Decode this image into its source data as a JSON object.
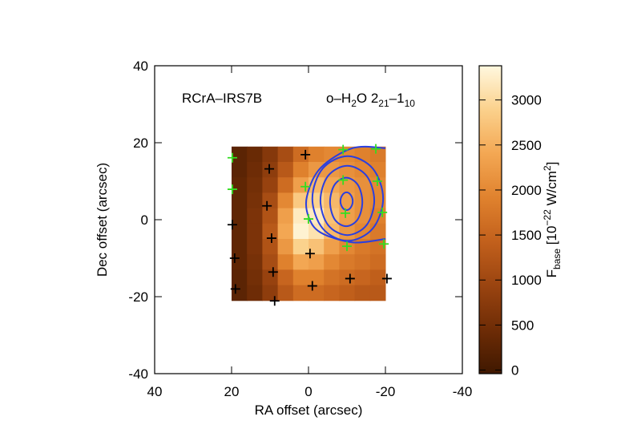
{
  "chart_data": {
    "type": "heatmap",
    "xlabel": "RA offset (arcsec)",
    "ylabel": "Dec offset (arcsec)",
    "xlim": [
      40,
      -40
    ],
    "xticks": [
      40,
      20,
      0,
      -20,
      -40
    ],
    "ylim": [
      -40,
      40
    ],
    "yticks": [
      -40,
      -20,
      0,
      20,
      40
    ],
    "annotations": [
      [
        {
          "text": "RCrA–IRS7B"
        }
      ],
      [
        {
          "text": "o–H"
        },
        {
          "text": "2",
          "shift": "sub"
        },
        {
          "text": "O 2"
        },
        {
          "text": "21",
          "shift": "sub"
        },
        {
          "text": "–1"
        },
        {
          "text": "10",
          "shift": "sub"
        }
      ]
    ],
    "heatmap": {
      "x": [
        18,
        14,
        10,
        6,
        2,
        -2,
        -6,
        -10,
        -14,
        -18
      ],
      "y": [
        17,
        13,
        9,
        5,
        1,
        -3,
        -7,
        -11,
        -15,
        -19
      ],
      "values": [
        [
          250,
          400,
          700,
          1100,
          1600,
          1900,
          2000,
          2000,
          1900,
          1800
        ],
        [
          250,
          450,
          800,
          1300,
          1900,
          2200,
          2200,
          2100,
          2000,
          1900
        ],
        [
          300,
          500,
          900,
          1600,
          2300,
          2600,
          2400,
          2200,
          2100,
          2000
        ],
        [
          300,
          550,
          1100,
          2000,
          2800,
          2900,
          2600,
          2300,
          2100,
          2000
        ],
        [
          300,
          600,
          1200,
          2300,
          3200,
          3200,
          2700,
          2300,
          2100,
          1900
        ],
        [
          300,
          600,
          1300,
          2400,
          3300,
          3100,
          2600,
          2200,
          2000,
          1800
        ],
        [
          300,
          600,
          1200,
          2200,
          2900,
          2700,
          2300,
          2000,
          1800,
          1700
        ],
        [
          300,
          550,
          1100,
          1900,
          2400,
          2300,
          2000,
          1800,
          1700,
          1600
        ],
        [
          250,
          500,
          900,
          1500,
          1900,
          1900,
          1700,
          1600,
          1500,
          1400
        ],
        [
          250,
          450,
          800,
          1300,
          1600,
          1600,
          1500,
          1400,
          1300,
          1300
        ]
      ]
    },
    "colormap": [
      "#3f1800",
      "#6e2c06",
      "#9a4410",
      "#c2601c",
      "#e0822e",
      "#f3a753",
      "#fbd18c",
      "#fff8df"
    ],
    "clim": [
      -40,
      3380
    ],
    "cticks": [
      0,
      500,
      1000,
      1500,
      2000,
      2500,
      3000
    ],
    "clabel": [
      {
        "text": "F"
      },
      {
        "text": "base",
        "shift": "sub"
      },
      {
        "text": " [10"
      },
      {
        "text": "−22",
        "shift": "sup"
      },
      {
        "text": " W/cm"
      },
      {
        "text": "2",
        "shift": "sup"
      },
      {
        "text": "]"
      }
    ],
    "contours": {
      "color": "#2a3fe0",
      "lines": [
        {
          "closed": true,
          "x": [
            -8.3,
            -8.8,
            -9.9,
            -11.0,
            -11.5,
            -11.0,
            -9.9,
            -8.8
          ],
          "y": [
            4.8,
            6.4,
            7.1,
            6.4,
            4.8,
            3.2,
            2.5,
            3.2
          ]
        },
        {
          "closed": true,
          "x": [
            -5.6,
            -6.8,
            -9.8,
            -12.8,
            -14.0,
            -12.8,
            -9.8,
            -6.8
          ],
          "y": [
            4.6,
            9.1,
            10.9,
            9.1,
            4.6,
            0.1,
            -1.7,
            0.1
          ]
        },
        {
          "closed": true,
          "x": [
            -3.1,
            -5.1,
            -10.1,
            -15.1,
            -17.1,
            -15.1,
            -10.1,
            -5.1
          ],
          "y": [
            5,
            11.4,
            14,
            11.4,
            5,
            -1.4,
            -4,
            -1.4
          ]
        },
        {
          "closed": true,
          "x": [
            -1,
            -3.7,
            -10.2,
            -16.7,
            -19.4,
            -16.7,
            -10.2,
            -3.7
          ],
          "y": [
            5.5,
            13.3,
            16.5,
            13.3,
            5.5,
            -2.3,
            -5.5,
            -2.3
          ]
        },
        {
          "closed": false,
          "x": [
            -20,
            -11.5,
            -3.1,
            0.4,
            0,
            -3.1,
            -11.5,
            -20
          ],
          "y": [
            18.6,
            18.6,
            13.4,
            6.1,
            0.8,
            -3.3,
            -5.9,
            -5
          ]
        }
      ]
    },
    "markers": [
      {
        "color": "#33dd22",
        "x": [
          19.8,
          19.8,
          0.8,
          0,
          -9,
          -9,
          -9.6,
          -10,
          -17.5,
          -17.9,
          -19.2,
          -19.6
        ],
        "y": [
          16.1,
          7.9,
          8.6,
          0.2,
          18.2,
          10.3,
          1.7,
          -6.9,
          18.4,
          10,
          1.9,
          -6.3
        ]
      },
      {
        "color": "#000000",
        "x": [
          10.2,
          0.8,
          10.8,
          9.6,
          19.8,
          19.2,
          19,
          9.2,
          8.8,
          -0.4,
          -1,
          -10.8,
          -20.4
        ],
        "y": [
          13.2,
          16.9,
          3.6,
          -4.8,
          -1.3,
          -10,
          -18,
          -13.6,
          -21.1,
          -8.8,
          -17.2,
          -15.3,
          -15.3
        ]
      }
    ]
  }
}
